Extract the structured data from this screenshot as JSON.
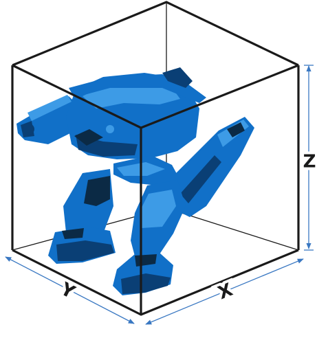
{
  "axes": {
    "x_label": "X",
    "y_label": "Y",
    "z_label": "Z"
  },
  "colors": {
    "box_edge": "#1a1a1a",
    "dimension_line": "#3a78c2",
    "robot_main": "#1170c8",
    "robot_highlight": "#3d9be6",
    "robot_shadow": "#0a3f75",
    "robot_dark": "#0b2a45"
  },
  "figure": {
    "subject_icon": "bipedal-mech-robot",
    "bounding_box": "wireframe-cube"
  }
}
